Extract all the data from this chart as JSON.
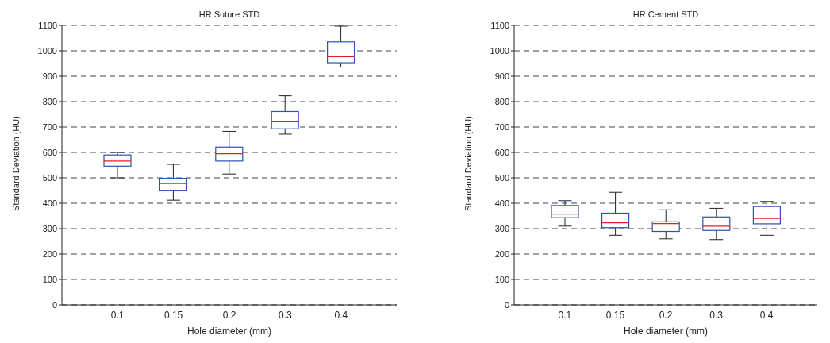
{
  "chart_data": [
    {
      "type": "box",
      "title": "HR Suture STD",
      "xlabel": "Hole diameter (mm)",
      "ylabel": "Standard Deviation (HU)",
      "categories": [
        "0.1",
        "0.15",
        "0.2",
        "0.3",
        "0.4"
      ],
      "ylim": [
        0,
        1100
      ],
      "yticks": [
        0,
        100,
        200,
        300,
        400,
        500,
        600,
        700,
        800,
        900,
        1000,
        1100
      ],
      "grid": "y",
      "series": [
        {
          "color": "#3050b0",
          "boxes": [
            {
              "low": 500,
              "q1": 546,
              "median": 566,
              "q3": 590,
              "high": 600
            },
            {
              "low": 412,
              "q1": 451,
              "median": 478,
              "q3": 498,
              "high": 553
            },
            {
              "low": 515,
              "q1": 566,
              "median": 595,
              "q3": 621,
              "high": 683
            },
            {
              "low": 672,
              "q1": 693,
              "median": 721,
              "q3": 761,
              "high": 823
            },
            {
              "low": 936,
              "q1": 953,
              "median": 977,
              "q3": 1035,
              "high": 1097
            }
          ]
        }
      ]
    },
    {
      "type": "box",
      "title": "HR Cement STD",
      "xlabel": "Hole diameter (mm)",
      "ylabel": "Standard Deviation (HU)",
      "categories": [
        "0.1",
        "0.15",
        "0.2",
        "0.3",
        "0.4"
      ],
      "ylim": [
        0,
        1100
      ],
      "yticks": [
        0,
        100,
        200,
        300,
        400,
        500,
        600,
        700,
        800,
        900,
        1000,
        1100
      ],
      "grid": "y",
      "series": [
        {
          "color": "#3050b0",
          "boxes": [
            {
              "low": 310,
              "q1": 343,
              "median": 357,
              "q3": 391,
              "high": 410
            },
            {
              "low": 274,
              "q1": 304,
              "median": 323,
              "q3": 361,
              "high": 443
            },
            {
              "low": 260,
              "q1": 289,
              "median": 320,
              "q3": 327,
              "high": 374
            },
            {
              "low": 257,
              "q1": 293,
              "median": 310,
              "q3": 346,
              "high": 380
            },
            {
              "low": 274,
              "q1": 319,
              "median": 340,
              "q3": 387,
              "high": 407
            }
          ]
        }
      ]
    }
  ]
}
